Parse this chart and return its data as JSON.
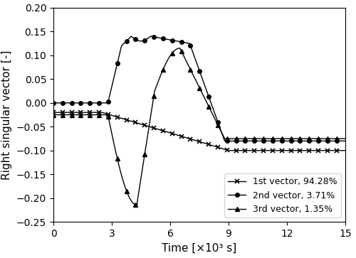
{
  "xlabel": "Time [×10³ s]",
  "ylabel": "Right singular vector [-]",
  "xlim": [
    0,
    15
  ],
  "ylim": [
    -0.25,
    0.2
  ],
  "yticks": [
    -0.25,
    -0.2,
    -0.15,
    -0.1,
    -0.05,
    0.0,
    0.05,
    0.1,
    0.15,
    0.2
  ],
  "xticks": [
    0,
    3,
    6,
    9,
    12,
    15
  ],
  "legend_entries": [
    "1st vector, 94.28%",
    "2nd vector, 3.71%",
    "3rd vector, 1.35%"
  ],
  "line_color": "black",
  "background_color": "#ffffff",
  "figsize": [
    5.0,
    3.63
  ],
  "dpi": 100
}
